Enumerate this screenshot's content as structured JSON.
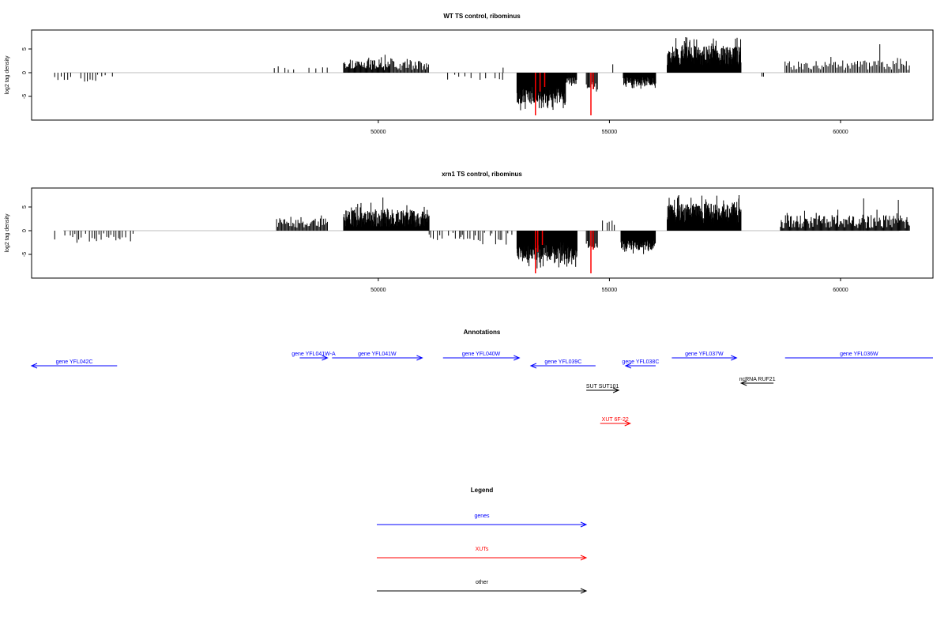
{
  "chart_data": [
    {
      "type": "bar",
      "title": "WT TS control, ribominus",
      "ylabel": "log2 tag density",
      "xlim": [
        42500,
        62000
      ],
      "ylim": [
        -10,
        9
      ],
      "x_ticks": [
        50000,
        55000,
        60000
      ],
      "y_ticks": [
        -5,
        0,
        5
      ],
      "highlight_color": "#ff0000",
      "bar_color": "#000000",
      "baseline_color": "#bebebe",
      "grid": false,
      "segments": [
        {
          "start": 43000,
          "end": 44250,
          "mode": "sparse",
          "sign": -1,
          "min": 0.4,
          "max": 2.6,
          "step": 70
        },
        {
          "start": 47750,
          "end": 48250,
          "mode": "sparse",
          "sign": 1,
          "min": 0.6,
          "max": 2.0,
          "step": 110
        },
        {
          "start": 48500,
          "end": 48900,
          "mode": "sparse",
          "sign": 1,
          "min": 0.6,
          "max": 1.8,
          "step": 110
        },
        {
          "start": 49250,
          "end": 50250,
          "mode": "dense",
          "sign": 1,
          "min": 0.5,
          "max": 3.8,
          "step": 16
        },
        {
          "start": 50250,
          "end": 51100,
          "mode": "dense",
          "sign": 1,
          "min": 0.5,
          "max": 3.6,
          "step": 22
        },
        {
          "start": 51500,
          "end": 52700,
          "mode": "sparse",
          "sign": -1,
          "min": 0.4,
          "max": 2.0,
          "step": 90
        },
        {
          "start": 52700,
          "end": 52800,
          "mode": "sparse",
          "sign": 1,
          "min": 1.0,
          "max": 2.4,
          "step": 60
        },
        {
          "start": 53000,
          "end": 54050,
          "mode": "dense",
          "sign": -1,
          "min": 3.0,
          "max": 8.0,
          "step": 6
        },
        {
          "start": 54050,
          "end": 54300,
          "mode": "dense",
          "sign": -1,
          "min": 1.0,
          "max": 3.0,
          "step": 12
        },
        {
          "start": 54500,
          "end": 54750,
          "mode": "dense",
          "sign": -1,
          "min": 2.0,
          "max": 5.0,
          "step": 20
        },
        {
          "start": 55000,
          "end": 55100,
          "mode": "sparse",
          "sign": 1,
          "min": 1.0,
          "max": 2.5,
          "step": 40
        },
        {
          "start": 55300,
          "end": 56000,
          "mode": "dense",
          "sign": -1,
          "min": 1.0,
          "max": 3.5,
          "step": 10
        },
        {
          "start": 56250,
          "end": 57850,
          "mode": "dense",
          "sign": 1,
          "min": 1.5,
          "max": 7.5,
          "step": 7
        },
        {
          "start": 58300,
          "end": 58350,
          "mode": "sparse",
          "sign": -1,
          "min": 0.8,
          "max": 1.0,
          "step": 50
        },
        {
          "start": 58800,
          "end": 61500,
          "mode": "dense",
          "sign": 1,
          "min": 0.5,
          "max": 3.5,
          "step": 32
        }
      ],
      "spikes": [
        {
          "x": 53400,
          "y": -9.0,
          "highlight": true
        },
        {
          "x": 53500,
          "y": -4.0,
          "highlight": true
        },
        {
          "x": 53600,
          "y": -3.0,
          "highlight": true
        },
        {
          "x": 54600,
          "y": -9.0,
          "highlight": true
        },
        {
          "x": 54650,
          "y": -3.5,
          "highlight": true
        },
        {
          "x": 56650,
          "y": 7.5,
          "highlight": false
        },
        {
          "x": 57250,
          "y": 7.2,
          "highlight": false
        },
        {
          "x": 60850,
          "y": 6.0,
          "highlight": false
        }
      ]
    },
    {
      "type": "bar",
      "title": "xrn1 TS control, ribominus",
      "ylabel": "log2 tag density",
      "xlim": [
        42500,
        62000
      ],
      "ylim": [
        -10,
        9
      ],
      "x_ticks": [
        50000,
        55000,
        60000
      ],
      "y_ticks": [
        -5,
        0,
        5
      ],
      "highlight_color": "#ff0000",
      "bar_color": "#000000",
      "baseline_color": "#bebebe",
      "grid": false,
      "segments": [
        {
          "start": 43000,
          "end": 44700,
          "mode": "sparse",
          "sign": -1,
          "min": 0.4,
          "max": 3.2,
          "step": 45
        },
        {
          "start": 47800,
          "end": 48900,
          "mode": "dense",
          "sign": 1,
          "min": 0.6,
          "max": 3.5,
          "step": 22
        },
        {
          "start": 49250,
          "end": 51100,
          "mode": "dense",
          "sign": 1,
          "min": 0.8,
          "max": 6.0,
          "step": 8
        },
        {
          "start": 51100,
          "end": 52900,
          "mode": "sparse",
          "sign": -1,
          "min": 0.4,
          "max": 3.0,
          "step": 45
        },
        {
          "start": 53000,
          "end": 54300,
          "mode": "dense",
          "sign": -1,
          "min": 2.0,
          "max": 8.0,
          "step": 5
        },
        {
          "start": 54500,
          "end": 54750,
          "mode": "dense",
          "sign": -1,
          "min": 2.0,
          "max": 5.0,
          "step": 20
        },
        {
          "start": 54850,
          "end": 55150,
          "mode": "sparse",
          "sign": 1,
          "min": 1.0,
          "max": 3.0,
          "step": 45
        },
        {
          "start": 55250,
          "end": 56000,
          "mode": "dense",
          "sign": -1,
          "min": 2.0,
          "max": 5.0,
          "step": 8
        },
        {
          "start": 56250,
          "end": 57850,
          "mode": "dense",
          "sign": 1,
          "min": 1.5,
          "max": 7.5,
          "step": 6
        },
        {
          "start": 58700,
          "end": 61500,
          "mode": "dense",
          "sign": 1,
          "min": 0.5,
          "max": 4.5,
          "step": 18
        }
      ],
      "spikes": [
        {
          "x": 53400,
          "y": -9.0,
          "highlight": true
        },
        {
          "x": 53450,
          "y": -4.5,
          "highlight": true
        },
        {
          "x": 53550,
          "y": -3.0,
          "highlight": true
        },
        {
          "x": 54600,
          "y": -9.0,
          "highlight": true
        },
        {
          "x": 54650,
          "y": -4.0,
          "highlight": true
        },
        {
          "x": 50100,
          "y": 7.0,
          "highlight": false
        },
        {
          "x": 56500,
          "y": 7.5,
          "highlight": false
        },
        {
          "x": 57000,
          "y": 7.4,
          "highlight": false
        },
        {
          "x": 60500,
          "y": 6.8,
          "highlight": false
        },
        {
          "x": 61250,
          "y": 6.5,
          "highlight": false
        }
      ]
    }
  ],
  "annotations": {
    "title": "Annotations",
    "features": [
      {
        "label": "gene YFL042C",
        "start": 42500,
        "end": 44350,
        "strand": "-",
        "row": 2,
        "category": "genes"
      },
      {
        "label": "gene YFL041W-A",
        "start": 48300,
        "end": 48900,
        "strand": "+",
        "row": 1,
        "category": "genes"
      },
      {
        "label": "gene YFL041W",
        "start": 49000,
        "end": 50950,
        "strand": "+",
        "row": 1,
        "category": "genes"
      },
      {
        "label": "gene YFL040W",
        "start": 51400,
        "end": 53050,
        "strand": "+",
        "row": 1,
        "category": "genes"
      },
      {
        "label": "gene YFL039C",
        "start": 53300,
        "end": 54700,
        "strand": "-",
        "row": 2,
        "category": "genes"
      },
      {
        "label": "gene YFL038C",
        "start": 55350,
        "end": 56000,
        "strand": "-",
        "row": 2,
        "category": "genes"
      },
      {
        "label": "gene YFL037W",
        "start": 56350,
        "end": 57750,
        "strand": "+",
        "row": 1,
        "category": "genes"
      },
      {
        "label": "gene YFL036W",
        "start": 58800,
        "end": 62000,
        "strand": "+",
        "row": 1,
        "category": "genes"
      },
      {
        "label": "ncRNA RUF21",
        "start": 57850,
        "end": 58550,
        "strand": "-",
        "row": 3,
        "category": "other"
      },
      {
        "label": "SUT SUT101",
        "start": 54500,
        "end": 55200,
        "strand": "+",
        "row": 4,
        "category": "other"
      },
      {
        "label": "XUT 6F-22",
        "start": 54800,
        "end": 55450,
        "strand": "+",
        "row": 5,
        "category": "XUTs"
      }
    ]
  },
  "legend": {
    "title": "Legend",
    "items": [
      {
        "label": "genes",
        "color": "#0000ff"
      },
      {
        "label": "XUTs",
        "color": "#ff0000"
      },
      {
        "label": "other",
        "color": "#000000"
      }
    ]
  },
  "colors": {
    "genes": "#0000ff",
    "XUTs": "#ff0000",
    "other": "#000000"
  }
}
